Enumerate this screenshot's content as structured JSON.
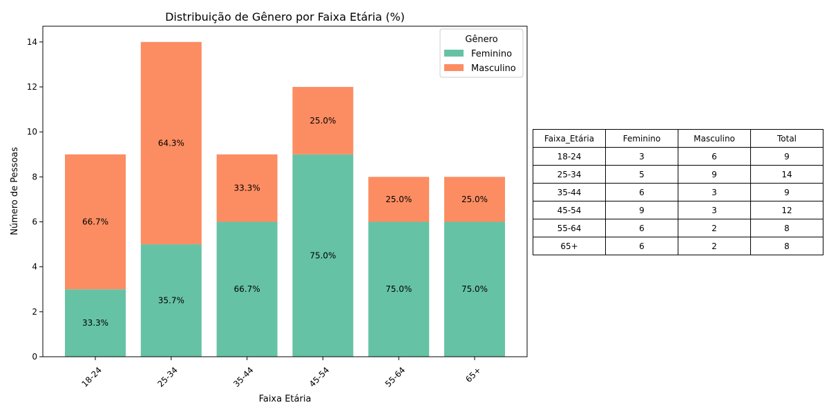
{
  "chart_data": {
    "type": "bar",
    "stacked": true,
    "title": "Distribuição de Gênero por Faixa Etária (%)",
    "xlabel": "Faixa Etária",
    "ylabel": "Número de Pessoas",
    "categories": [
      "18-24",
      "25-34",
      "35-44",
      "45-54",
      "55-64",
      "65+"
    ],
    "series": [
      {
        "name": "Feminino",
        "values": [
          3,
          5,
          6,
          9,
          6,
          6
        ],
        "color": "#66c2a5",
        "labels": [
          "33.3%",
          "35.7%",
          "66.7%",
          "75.0%",
          "75.0%",
          "75.0%"
        ]
      },
      {
        "name": "Masculino",
        "values": [
          6,
          9,
          3,
          3,
          2,
          2
        ],
        "color": "#fc8d62",
        "labels": [
          "66.7%",
          "64.3%",
          "33.3%",
          "25.0%",
          "25.0%",
          "25.0%"
        ]
      }
    ],
    "ylim": [
      0,
      14.7
    ],
    "yticks": [
      "0",
      "2",
      "4",
      "6",
      "8",
      "10",
      "12",
      "14"
    ],
    "legend": {
      "title": "Gênero",
      "placement": "top-right"
    },
    "grid": false
  },
  "table": {
    "headers": [
      "Faixa_Etária",
      "Feminino",
      "Masculino",
      "Total"
    ],
    "rows": [
      [
        "18-24",
        "3",
        "6",
        "9"
      ],
      [
        "25-34",
        "5",
        "9",
        "14"
      ],
      [
        "35-44",
        "6",
        "3",
        "9"
      ],
      [
        "45-54",
        "9",
        "3",
        "12"
      ],
      [
        "55-64",
        "6",
        "2",
        "8"
      ],
      [
        "65+",
        "6",
        "2",
        "8"
      ]
    ]
  }
}
